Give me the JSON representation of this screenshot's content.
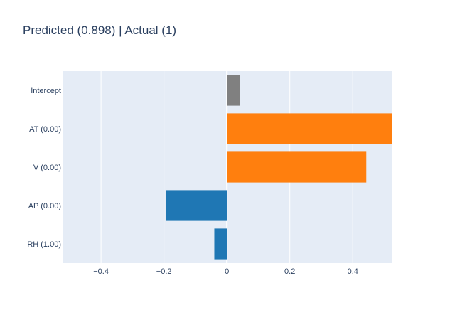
{
  "chart_data": {
    "type": "bar",
    "orientation": "horizontal",
    "title": "Predicted (0.898) | Actual (1)",
    "categories": [
      "Intercept",
      "AT (0.00)",
      "V (0.00)",
      "AP (0.00)",
      "RH (1.00)"
    ],
    "values": [
      0.042,
      0.526,
      0.443,
      -0.193,
      -0.04
    ],
    "bar_colors": [
      "#808080",
      "#ff7f0e",
      "#ff7f0e",
      "#1f77b4",
      "#1f77b4"
    ],
    "xlim": [
      -0.52,
      0.526
    ],
    "x_ticks": [
      -0.4,
      -0.2,
      0,
      0.2,
      0.4
    ],
    "x_tick_labels": [
      "−0.4",
      "−0.2",
      "0",
      "0.2",
      "0.4"
    ],
    "xlabel": "",
    "ylabel": "",
    "grid": true,
    "plot_background": "#e5ecf6",
    "grid_color": "#ffffff",
    "text_color": "#2a3f5f"
  }
}
